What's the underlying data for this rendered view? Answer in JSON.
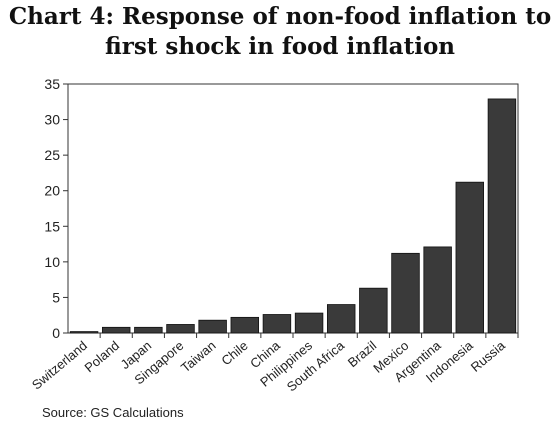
{
  "chart_data": {
    "type": "bar",
    "title_line1": "Chart 4: Response of non-food inflation to",
    "title_line2": "first shock in food inflation",
    "categories": [
      "Switzerland",
      "Poland",
      "Japan",
      "Singapore",
      "Taiwan",
      "Chile",
      "China",
      "Philippines",
      "South Africa",
      "Brazil",
      "Mexico",
      "Argentina",
      "Indonesia",
      "Russia"
    ],
    "values": [
      0.2,
      0.8,
      0.8,
      1.2,
      1.8,
      2.2,
      2.6,
      2.8,
      4.0,
      6.3,
      11.2,
      12.1,
      21.2,
      32.9
    ],
    "ylim": [
      0,
      35
    ],
    "yticks": [
      0,
      5,
      10,
      15,
      20,
      25,
      30,
      35
    ],
    "xlabel": "",
    "ylabel": "",
    "grid": false,
    "legend": "none",
    "bar_color": "#3a3a3a",
    "source": "Source: GS Calculations"
  }
}
